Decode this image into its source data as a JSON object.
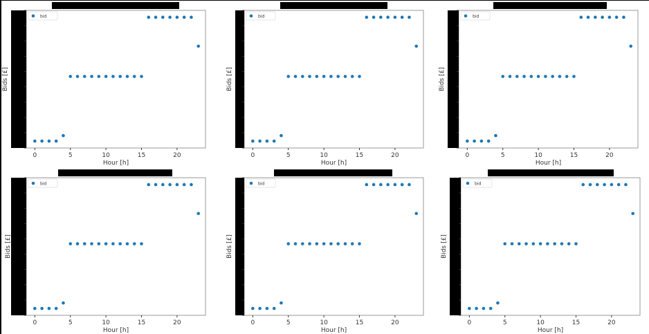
{
  "colors": {
    "marker": "#1f77b4",
    "axis": "#333333",
    "tick_text": "#333333",
    "redaction": "#000000",
    "frame": "#9a9a9a"
  },
  "chart_data": [
    {
      "type": "scatter",
      "xlabel": "Hour [h]",
      "ylabel": "Bids [£]",
      "legend": "top-left",
      "legend_entry": "bid",
      "grid": false,
      "xlim": [
        -1.2,
        24
      ],
      "xticks": [
        0,
        5,
        10,
        15,
        20
      ],
      "ylim": [
        0,
        1
      ],
      "x": [
        0,
        1,
        2,
        3,
        4,
        5,
        6,
        7,
        8,
        9,
        10,
        11,
        12,
        13,
        14,
        15,
        16,
        17,
        18,
        19,
        20,
        21,
        22,
        23
      ],
      "y": [
        0.05,
        0.05,
        0.05,
        0.05,
        0.09,
        0.52,
        0.52,
        0.52,
        0.52,
        0.52,
        0.52,
        0.52,
        0.52,
        0.52,
        0.52,
        0.52,
        0.95,
        0.95,
        0.95,
        0.95,
        0.95,
        0.95,
        0.95,
        0.74
      ]
    },
    {
      "type": "scatter",
      "xlabel": "Hour [h]",
      "ylabel": "Bids [£]",
      "legend": "top-left",
      "legend_entry": "bid",
      "grid": false,
      "xlim": [
        -1.2,
        24
      ],
      "xticks": [
        0,
        5,
        10,
        15,
        20
      ],
      "ylim": [
        0,
        1
      ],
      "x": [
        0,
        1,
        2,
        3,
        4,
        5,
        6,
        7,
        8,
        9,
        10,
        11,
        12,
        13,
        14,
        15,
        16,
        17,
        18,
        19,
        20,
        21,
        22,
        23
      ],
      "y": [
        0.05,
        0.05,
        0.05,
        0.05,
        0.09,
        0.52,
        0.52,
        0.52,
        0.52,
        0.52,
        0.52,
        0.52,
        0.52,
        0.52,
        0.52,
        0.52,
        0.95,
        0.95,
        0.95,
        0.95,
        0.95,
        0.95,
        0.95,
        0.74
      ]
    },
    {
      "type": "scatter",
      "xlabel": "Hour [h]",
      "ylabel": "Bids [£]",
      "legend": "top-left",
      "legend_entry": "bid",
      "grid": false,
      "xlim": [
        -1.2,
        24
      ],
      "xticks": [
        0,
        5,
        10,
        15,
        20
      ],
      "ylim": [
        0,
        1
      ],
      "x": [
        0,
        1,
        2,
        3,
        4,
        5,
        6,
        7,
        8,
        9,
        10,
        11,
        12,
        13,
        14,
        15,
        16,
        17,
        18,
        19,
        20,
        21,
        22,
        23
      ],
      "y": [
        0.05,
        0.05,
        0.05,
        0.05,
        0.09,
        0.52,
        0.52,
        0.52,
        0.52,
        0.52,
        0.52,
        0.52,
        0.52,
        0.52,
        0.52,
        0.52,
        0.95,
        0.95,
        0.95,
        0.95,
        0.95,
        0.95,
        0.95,
        0.74
      ]
    },
    {
      "type": "scatter",
      "xlabel": "Hour [h]",
      "ylabel": "Bids [£]",
      "legend": "top-left",
      "legend_entry": "bid",
      "grid": false,
      "xlim": [
        -1.2,
        24
      ],
      "xticks": [
        0,
        5,
        10,
        15,
        20
      ],
      "ylim": [
        0,
        1
      ],
      "x": [
        0,
        1,
        2,
        3,
        4,
        5,
        6,
        7,
        8,
        9,
        10,
        11,
        12,
        13,
        14,
        15,
        16,
        17,
        18,
        19,
        20,
        21,
        22,
        23
      ],
      "y": [
        0.05,
        0.05,
        0.05,
        0.05,
        0.09,
        0.52,
        0.52,
        0.52,
        0.52,
        0.52,
        0.52,
        0.52,
        0.52,
        0.52,
        0.52,
        0.52,
        0.95,
        0.95,
        0.95,
        0.95,
        0.95,
        0.95,
        0.95,
        0.74
      ]
    },
    {
      "type": "scatter",
      "xlabel": "Hour [h]",
      "ylabel": "Bids [£]",
      "legend": "top-left",
      "legend_entry": "bid",
      "grid": false,
      "xlim": [
        -1.2,
        24
      ],
      "xticks": [
        0,
        5,
        10,
        15,
        20
      ],
      "ylim": [
        0,
        1
      ],
      "x": [
        0,
        1,
        2,
        3,
        4,
        5,
        6,
        7,
        8,
        9,
        10,
        11,
        12,
        13,
        14,
        15,
        16,
        17,
        18,
        19,
        20,
        21,
        22,
        23
      ],
      "y": [
        0.05,
        0.05,
        0.05,
        0.05,
        0.09,
        0.52,
        0.52,
        0.52,
        0.52,
        0.52,
        0.52,
        0.52,
        0.52,
        0.52,
        0.52,
        0.52,
        0.95,
        0.95,
        0.95,
        0.95,
        0.95,
        0.95,
        0.95,
        0.74
      ]
    },
    {
      "type": "scatter",
      "xlabel": "Hour [h]",
      "ylabel": "Bids [£]",
      "legend": "top-left",
      "legend_entry": "bid",
      "grid": false,
      "xlim": [
        -1.2,
        24
      ],
      "xticks": [
        0,
        5,
        10,
        15,
        20
      ],
      "ylim": [
        0,
        1
      ],
      "x": [
        0,
        1,
        2,
        3,
        4,
        5,
        6,
        7,
        8,
        9,
        10,
        11,
        12,
        13,
        14,
        15,
        16,
        17,
        18,
        19,
        20,
        21,
        22,
        23
      ],
      "y": [
        0.05,
        0.05,
        0.05,
        0.05,
        0.09,
        0.52,
        0.52,
        0.52,
        0.52,
        0.52,
        0.52,
        0.52,
        0.52,
        0.52,
        0.52,
        0.52,
        0.95,
        0.95,
        0.95,
        0.95,
        0.95,
        0.95,
        0.95,
        0.74
      ]
    }
  ]
}
